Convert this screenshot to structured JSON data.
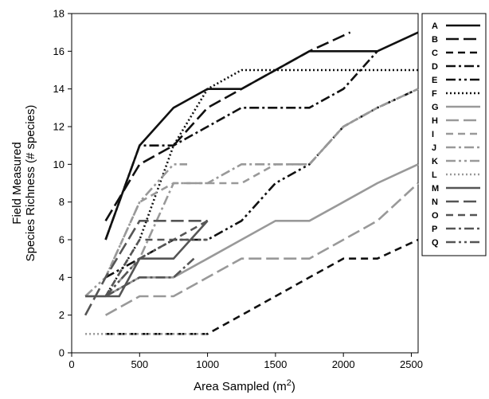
{
  "chart_data": {
    "type": "line",
    "xlabel": "Area Sampled (m",
    "xlabel_superscript": "2",
    "xlabel_suffix": ")",
    "ylabel_lines": [
      "Field Measured",
      "Species Richness (# species)"
    ],
    "xlim": [
      0,
      2550
    ],
    "ylim": [
      0,
      18
    ],
    "x_ticks": [
      0,
      500,
      1000,
      1500,
      2000,
      2500
    ],
    "y_ticks": [
      0,
      2,
      4,
      6,
      8,
      10,
      12,
      14,
      16,
      18
    ],
    "grid": false,
    "legend_position": "right",
    "series": [
      {
        "name": "A",
        "color": "#111111",
        "dash": "",
        "points": [
          [
            250,
            6
          ],
          [
            500,
            11
          ],
          [
            750,
            13
          ],
          [
            1000,
            14
          ],
          [
            1250,
            14
          ],
          [
            1500,
            15
          ],
          [
            1750,
            16
          ],
          [
            2000,
            16
          ],
          [
            2250,
            16
          ],
          [
            2550,
            17
          ]
        ]
      },
      {
        "name": "B",
        "color": "#111111",
        "dash": "16,6",
        "points": [
          [
            250,
            7
          ],
          [
            500,
            10
          ],
          [
            750,
            11
          ],
          [
            1000,
            13
          ],
          [
            1250,
            14
          ],
          [
            1500,
            15
          ],
          [
            1750,
            16
          ],
          [
            2050,
            17
          ]
        ]
      },
      {
        "name": "C",
        "color": "#111111",
        "dash": "9,6",
        "points": [
          [
            250,
            1
          ],
          [
            500,
            1
          ],
          [
            750,
            1
          ],
          [
            1000,
            1
          ],
          [
            1250,
            2
          ],
          [
            1500,
            3
          ],
          [
            1750,
            4
          ],
          [
            2000,
            5
          ],
          [
            2250,
            5
          ],
          [
            2550,
            6
          ]
        ]
      },
      {
        "name": "D",
        "color": "#111111",
        "dash": "12,4,3,4",
        "points": [
          [
            250,
            6
          ],
          [
            500,
            11
          ],
          [
            750,
            11
          ],
          [
            1000,
            12
          ],
          [
            1250,
            13
          ],
          [
            1500,
            13
          ],
          [
            1750,
            13
          ],
          [
            2000,
            14
          ],
          [
            2250,
            16
          ]
        ]
      },
      {
        "name": "E",
        "color": "#111111",
        "dash": "12,4,3,4,3,4",
        "points": [
          [
            250,
            4
          ],
          [
            500,
            5
          ],
          [
            750,
            6
          ],
          [
            1000,
            6
          ],
          [
            1250,
            7
          ],
          [
            1500,
            9
          ],
          [
            1750,
            10
          ],
          [
            2000,
            12
          ],
          [
            2250,
            13
          ],
          [
            2550,
            14
          ]
        ]
      },
      {
        "name": "F",
        "color": "#111111",
        "dash": "2,3",
        "points": [
          [
            250,
            3
          ],
          [
            500,
            6
          ],
          [
            750,
            11
          ],
          [
            1000,
            14
          ],
          [
            1250,
            15
          ],
          [
            1500,
            15
          ],
          [
            1750,
            15
          ],
          [
            2000,
            15
          ],
          [
            2250,
            15
          ],
          [
            2550,
            15
          ]
        ]
      },
      {
        "name": "G",
        "color": "#999999",
        "dash": "",
        "points": [
          [
            100,
            3
          ],
          [
            250,
            3
          ],
          [
            500,
            4
          ],
          [
            750,
            4
          ],
          [
            1000,
            5
          ],
          [
            1250,
            6
          ],
          [
            1500,
            7
          ],
          [
            1750,
            7
          ],
          [
            2000,
            8
          ],
          [
            2250,
            9
          ],
          [
            2550,
            10
          ]
        ]
      },
      {
        "name": "H",
        "color": "#999999",
        "dash": "16,6",
        "points": [
          [
            250,
            2
          ],
          [
            500,
            3
          ],
          [
            750,
            3
          ],
          [
            1000,
            4
          ],
          [
            1250,
            5
          ],
          [
            1500,
            5
          ],
          [
            1750,
            5
          ],
          [
            2000,
            6
          ],
          [
            2250,
            7
          ],
          [
            2550,
            9
          ]
        ]
      },
      {
        "name": "I",
        "color": "#999999",
        "dash": "9,6",
        "points": [
          [
            250,
            4
          ],
          [
            500,
            8
          ],
          [
            750,
            9
          ],
          [
            1000,
            9
          ],
          [
            1250,
            9
          ],
          [
            1500,
            10
          ],
          [
            1750,
            10
          ],
          [
            2000,
            12
          ],
          [
            2250,
            13
          ]
        ]
      },
      {
        "name": "J",
        "color": "#999999",
        "dash": "12,4,3,4",
        "points": [
          [
            250,
            3
          ],
          [
            500,
            5
          ],
          [
            750,
            9
          ],
          [
            1000,
            9
          ],
          [
            1250,
            10
          ],
          [
            1500,
            10
          ],
          [
            1750,
            10
          ],
          [
            2000,
            12
          ],
          [
            2250,
            13
          ],
          [
            2550,
            14
          ]
        ]
      },
      {
        "name": "K",
        "color": "#999999",
        "dash": "12,4,3,4,3,4",
        "points": [
          [
            100,
            3
          ],
          [
            250,
            4
          ],
          [
            500,
            8
          ],
          [
            750,
            10
          ],
          [
            850,
            10
          ]
        ]
      },
      {
        "name": "L",
        "color": "#999999",
        "dash": "2,3",
        "points": [
          [
            100,
            1
          ],
          [
            250,
            1
          ],
          [
            500,
            1
          ],
          [
            750,
            1
          ],
          [
            1000,
            1
          ]
        ]
      },
      {
        "name": "M",
        "color": "#555555",
        "dash": "",
        "points": [
          [
            100,
            3
          ],
          [
            350,
            3
          ],
          [
            500,
            5
          ],
          [
            750,
            5
          ],
          [
            1000,
            7
          ]
        ]
      },
      {
        "name": "N",
        "color": "#555555",
        "dash": "16,6",
        "points": [
          [
            100,
            2
          ],
          [
            250,
            4
          ],
          [
            500,
            7
          ],
          [
            750,
            7
          ],
          [
            1000,
            7
          ]
        ]
      },
      {
        "name": "O",
        "color": "#555555",
        "dash": "9,6",
        "points": [
          [
            250,
            3
          ],
          [
            500,
            6
          ],
          [
            750,
            6
          ],
          [
            1000,
            7
          ]
        ]
      },
      {
        "name": "P",
        "color": "#555555",
        "dash": "12,4,3,4",
        "points": [
          [
            250,
            3
          ],
          [
            500,
            4
          ],
          [
            750,
            4
          ],
          [
            900,
            5
          ]
        ]
      },
      {
        "name": "Q",
        "color": "#555555",
        "dash": "12,4,3,4,3,4",
        "points": [
          [
            250,
            3
          ],
          [
            500,
            5
          ],
          [
            750,
            6
          ],
          [
            1000,
            6
          ]
        ]
      }
    ]
  }
}
